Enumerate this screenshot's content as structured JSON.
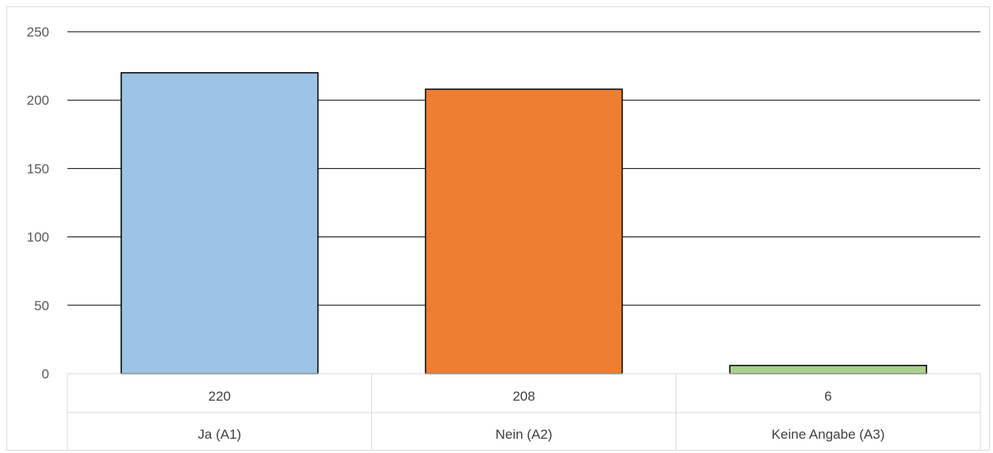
{
  "chart_data": {
    "type": "bar",
    "title": "",
    "xlabel": "",
    "ylabel": "",
    "categories": [
      "Ja (A1)",
      "Nein (A2)",
      "Keine Angabe (A3)"
    ],
    "values": [
      220,
      208,
      6
    ],
    "value_labels": [
      "220",
      "208",
      "6"
    ],
    "colors": [
      "#9dc3e6",
      "#ed7d31",
      "#a9d18e"
    ],
    "ylim": [
      0,
      250
    ],
    "yticks": [
      0,
      50,
      100,
      150,
      200,
      250
    ],
    "grid": true,
    "data_table": true
  }
}
